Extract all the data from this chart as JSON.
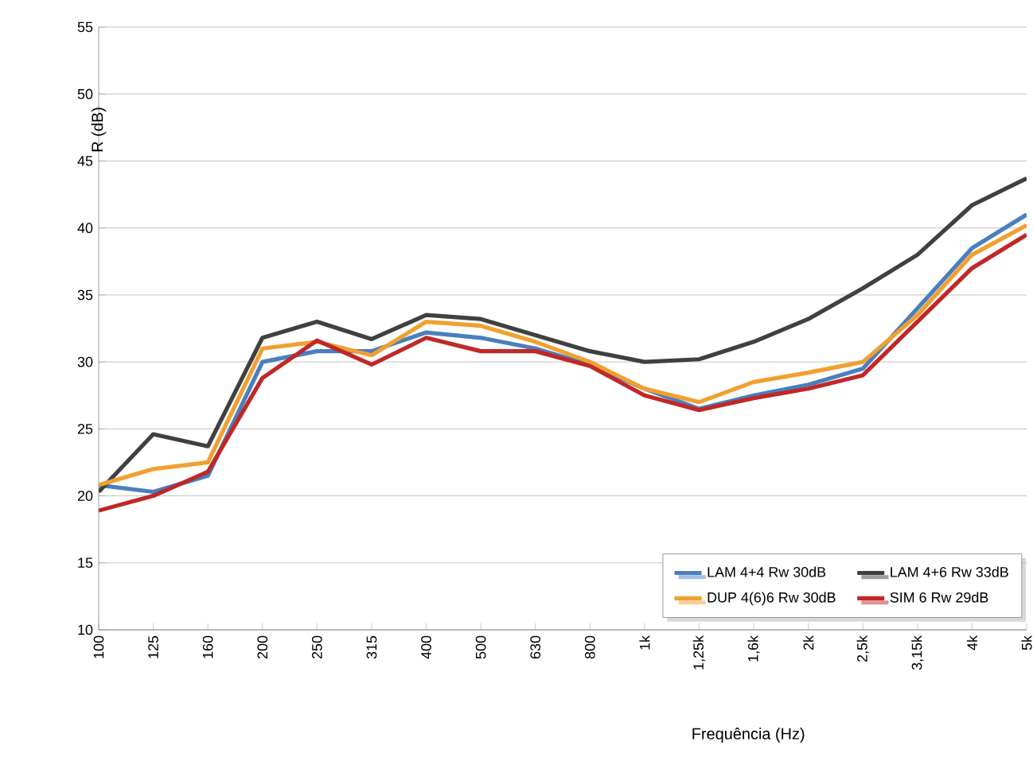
{
  "chart_data": {
    "type": "line",
    "xlabel": "Frequência (Hz)",
    "ylabel": "R (dB)",
    "categories": [
      "100",
      "125",
      "160",
      "200",
      "250",
      "315",
      "400",
      "500",
      "630",
      "800",
      "1k",
      "1,25k",
      "1,6k",
      "2k",
      "2,5k",
      "3,15k",
      "4k",
      "5k"
    ],
    "series": [
      {
        "name": "LAM 4+4 Rw 30dB",
        "color": "#4a7fbf",
        "values": [
          20.8,
          20.3,
          21.5,
          30.0,
          30.8,
          30.8,
          32.2,
          31.8,
          31.0,
          29.8,
          28.0,
          26.5,
          27.5,
          28.3,
          29.5,
          34.0,
          38.5,
          41.0
        ]
      },
      {
        "name": "LAM 4+6 Rw 33dB",
        "color": "#404040",
        "values": [
          20.3,
          24.6,
          23.7,
          31.8,
          33.0,
          31.7,
          33.5,
          33.2,
          32.0,
          30.8,
          30.0,
          30.2,
          31.5,
          33.2,
          35.5,
          38.0,
          41.7,
          43.7
        ]
      },
      {
        "name": "DUP 4(6)6 Rw 30dB",
        "color": "#f0a030",
        "values": [
          20.8,
          22.0,
          22.5,
          31.0,
          31.5,
          30.5,
          33.0,
          32.7,
          31.5,
          30.0,
          28.0,
          27.0,
          28.5,
          29.2,
          30.0,
          33.5,
          38.0,
          40.2
        ]
      },
      {
        "name": "SIM 6 Rw 29dB",
        "color": "#c02828",
        "values": [
          18.9,
          20.0,
          21.8,
          28.8,
          31.6,
          29.8,
          31.8,
          30.8,
          30.8,
          29.7,
          27.5,
          26.4,
          27.3,
          28.0,
          29.0,
          33.0,
          37.0,
          39.5
        ]
      }
    ],
    "ylim": [
      10,
      55
    ],
    "yticks": [
      10,
      15,
      20,
      25,
      30,
      35,
      40,
      45,
      50,
      55
    ],
    "grid": "y",
    "legend": "bottom right",
    "marker": "none",
    "line_style": "solid"
  }
}
